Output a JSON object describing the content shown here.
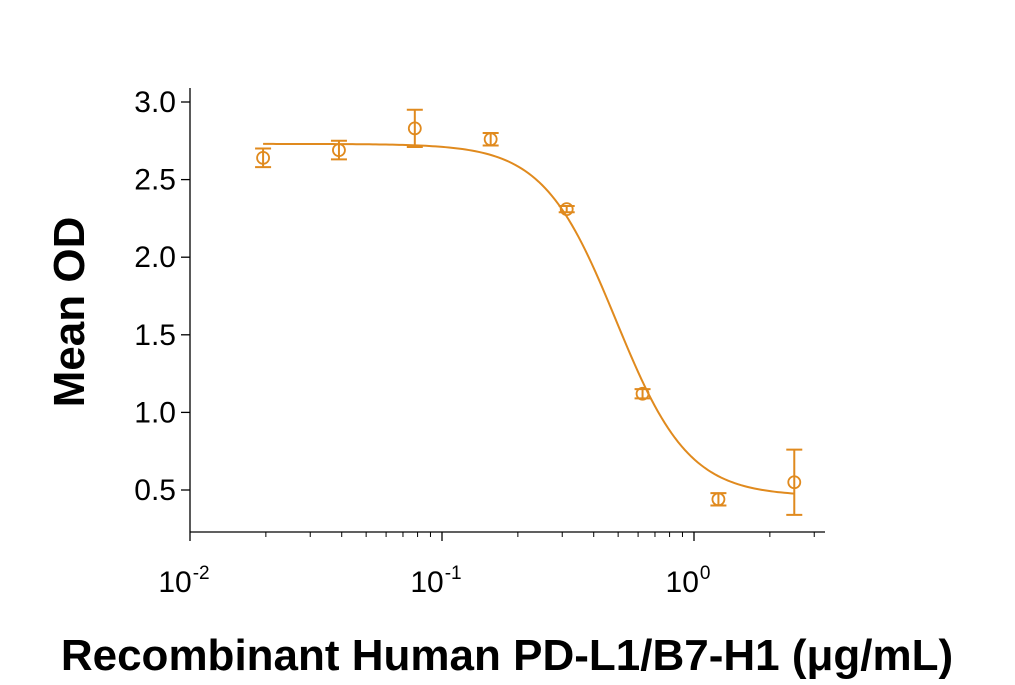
{
  "chart_data": {
    "type": "scatter",
    "title": "",
    "xlabel": "Recombinant Human PD-L1/B7-H1 (μg/mL)",
    "ylabel": "Mean OD",
    "xscale": "log",
    "xlim": [
      0.01,
      3.2
    ],
    "ylim": [
      0.3,
      3.05
    ],
    "yticks": [
      {
        "value": 0.5,
        "label": "0.5"
      },
      {
        "value": 1.0,
        "label": "1.0"
      },
      {
        "value": 1.5,
        "label": "1.5"
      },
      {
        "value": 2.0,
        "label": "2.0"
      },
      {
        "value": 2.5,
        "label": "2.5"
      },
      {
        "value": 3.0,
        "label": "3.0"
      }
    ],
    "xticks": [
      {
        "value": 0.01,
        "base": "10",
        "exp": "-2"
      },
      {
        "value": 0.1,
        "base": "10",
        "exp": "-1"
      },
      {
        "value": 1,
        "base": "10",
        "exp": "0"
      }
    ],
    "grid": false,
    "legend": "none",
    "color": "#E08A1E",
    "points": [
      {
        "x": 0.0195,
        "y": 2.64,
        "err": 0.06
      },
      {
        "x": 0.039,
        "y": 2.69,
        "err": 0.06
      },
      {
        "x": 0.078,
        "y": 2.83,
        "err": 0.12
      },
      {
        "x": 0.156,
        "y": 2.76,
        "err": 0.04
      },
      {
        "x": 0.3125,
        "y": 2.31,
        "err": 0.02
      },
      {
        "x": 0.625,
        "y": 1.12,
        "err": 0.03
      },
      {
        "x": 1.25,
        "y": 0.44,
        "err": 0.04
      },
      {
        "x": 2.5,
        "y": 0.55,
        "err": 0.21
      }
    ],
    "fit_curve": {
      "model": "4PL",
      "top": 2.73,
      "bottom": 0.46,
      "ec50": 0.49,
      "hill": 3.0,
      "x_range": [
        0.0195,
        2.5
      ]
    }
  }
}
